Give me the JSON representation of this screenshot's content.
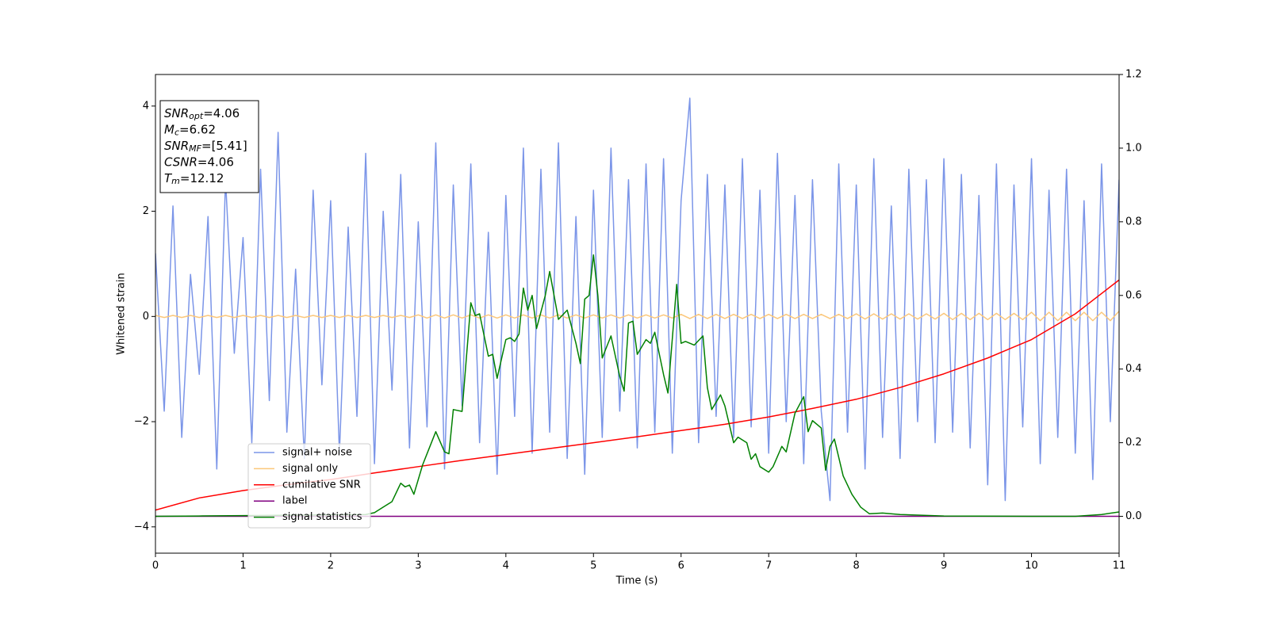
{
  "chart_data": {
    "type": "line",
    "xlabel": "Time (s)",
    "ylabel": "Whitened strain",
    "xlim": [
      0,
      11
    ],
    "ylim": [
      -4.5,
      4.6
    ],
    "y2lim": [
      -0.1,
      1.2
    ],
    "xticks": [
      0,
      1,
      2,
      3,
      4,
      5,
      6,
      7,
      8,
      9,
      10,
      11
    ],
    "yticks": [
      {
        "value": -4,
        "label": "−4"
      },
      {
        "value": -2,
        "label": "−2"
      },
      0,
      2,
      4
    ],
    "y2ticks": [
      {
        "value": 0,
        "label": "0.0"
      },
      0.2,
      0.4,
      0.6,
      0.8,
      {
        "value": 1,
        "label": "1.0"
      },
      1.2
    ],
    "legend": true,
    "x": [
      0,
      0.1,
      0.2,
      0.3,
      0.4,
      0.5,
      0.6,
      0.7,
      0.8,
      0.9,
      1,
      1.1,
      1.2,
      1.3,
      1.4,
      1.5,
      1.6,
      1.7,
      1.8,
      1.9,
      2,
      2.1,
      2.2,
      2.3,
      2.4,
      2.5,
      2.6,
      2.7,
      2.8,
      2.9,
      3,
      3.1,
      3.2,
      3.3,
      3.4,
      3.5,
      3.6,
      3.7,
      3.8,
      3.9,
      4,
      4.1,
      4.2,
      4.3,
      4.4,
      4.5,
      4.6,
      4.7,
      4.8,
      4.9,
      5,
      5.1,
      5.2,
      5.3,
      5.4,
      5.5,
      5.6,
      5.7,
      5.8,
      5.9,
      6,
      6.1,
      6.2,
      6.3,
      6.4,
      6.5,
      6.6,
      6.7,
      6.8,
      6.9,
      7,
      7.1,
      7.2,
      7.3,
      7.4,
      7.5,
      7.6,
      7.7,
      7.8,
      7.9,
      8,
      8.1,
      8.2,
      8.3,
      8.4,
      8.5,
      8.6,
      8.7,
      8.8,
      8.9,
      9,
      9.1,
      9.2,
      9.3,
      9.4,
      9.5,
      9.6,
      9.7,
      9.8,
      9.9,
      10,
      10.1,
      10.2,
      10.3,
      10.4,
      10.5,
      10.6,
      10.7,
      10.8,
      10.9,
      11
    ],
    "series": [
      {
        "name": "signal+ noise",
        "color": "#7b95e8",
        "values": [
          1.2,
          -1.8,
          2.1,
          -2.3,
          0.8,
          -1.1,
          1.9,
          -2.9,
          2.6,
          -0.7,
          1.5,
          -2.4,
          2.8,
          -1.6,
          3.5,
          -2.2,
          0.9,
          -2.7,
          2.4,
          -1.3,
          2.2,
          -2.6,
          1.7,
          -1.9,
          3.1,
          -2.8,
          2.0,
          -1.4,
          2.7,
          -2.5,
          1.8,
          -2.1,
          3.3,
          -2.9,
          2.5,
          -1.7,
          2.9,
          -2.4,
          1.6,
          -3.0,
          2.3,
          -1.9,
          3.2,
          -2.6,
          2.8,
          -2.2,
          3.3,
          -2.7,
          1.9,
          -3.0,
          2.4,
          -2.3,
          3.2,
          -1.8,
          2.6,
          -2.5,
          2.9,
          -2.2,
          3.0,
          -2.6,
          2.2,
          4.15,
          -2.4,
          2.7,
          -1.9,
          2.5,
          -2.3,
          3.0,
          -2.1,
          2.4,
          -2.6,
          3.1,
          -2.0,
          2.3,
          -2.8,
          2.6,
          -1.8,
          -3.5,
          2.9,
          -2.2,
          2.5,
          -2.9,
          3.0,
          -2.3,
          2.1,
          -2.7,
          2.8,
          -2.0,
          2.6,
          -2.4,
          3.0,
          -2.2,
          2.7,
          -2.5,
          2.3,
          -3.2,
          2.9,
          -3.5,
          2.5,
          -2.1,
          3.0,
          -2.8,
          2.4,
          -2.3,
          2.8,
          -2.6,
          2.2,
          -3.1,
          2.9,
          -2.0,
          2.6
        ]
      },
      {
        "name": "signal only",
        "color": "#fbc77a",
        "values": [
          0.02,
          -0.02,
          0.02,
          -0.02,
          0.02,
          -0.02,
          0.02,
          -0.02,
          0.02,
          -0.02,
          0.02,
          -0.02,
          0.02,
          -0.02,
          0.02,
          -0.02,
          0.02,
          -0.02,
          0.02,
          -0.02,
          0.02,
          -0.02,
          0.02,
          -0.02,
          0.02,
          -0.02,
          0.02,
          -0.02,
          0.02,
          -0.02,
          0.03,
          -0.03,
          0.03,
          -0.03,
          0.03,
          -0.03,
          0.03,
          -0.03,
          0.03,
          -0.03,
          0.03,
          -0.03,
          0.03,
          -0.03,
          0.03,
          -0.03,
          0.03,
          -0.03,
          0.03,
          -0.03,
          0.03,
          -0.03,
          0.03,
          -0.03,
          0.03,
          -0.03,
          0.03,
          -0.03,
          0.03,
          -0.03,
          0.04,
          -0.04,
          0.04,
          -0.04,
          0.04,
          -0.04,
          0.04,
          -0.04,
          0.04,
          -0.04,
          0.04,
          -0.04,
          0.04,
          -0.04,
          0.04,
          -0.04,
          0.04,
          -0.04,
          0.04,
          -0.04,
          0.05,
          -0.05,
          0.05,
          -0.05,
          0.05,
          -0.05,
          0.05,
          -0.05,
          0.05,
          -0.05,
          0.06,
          -0.06,
          0.06,
          -0.06,
          0.06,
          -0.06,
          0.06,
          -0.06,
          0.06,
          -0.06,
          0.08,
          -0.08,
          0.08,
          -0.08,
          0.08,
          -0.08,
          0.08,
          -0.08,
          0.08,
          -0.08,
          0.1
        ]
      },
      {
        "name": "cumilative SNR",
        "color": "#ff0000",
        "axis": "y2",
        "x": [
          0,
          0.5,
          1,
          1.5,
          2,
          2.5,
          3,
          3.5,
          4,
          4.5,
          5,
          5.5,
          6,
          6.5,
          7,
          7.5,
          8,
          8.5,
          9,
          9.5,
          10,
          10.5,
          11
        ],
        "values": [
          0.017,
          0.05,
          0.07,
          0.086,
          0.1,
          0.118,
          0.135,
          0.152,
          0.168,
          0.184,
          0.2,
          0.216,
          0.233,
          0.25,
          0.27,
          0.293,
          0.318,
          0.35,
          0.387,
          0.43,
          0.48,
          0.55,
          0.642
        ]
      },
      {
        "name": "label",
        "color": "#800080",
        "axis": "y2",
        "x": [
          0,
          11
        ],
        "values": [
          0,
          0
        ]
      },
      {
        "name": "signal statistics",
        "color": "#008000",
        "axis": "y2",
        "x": [
          0,
          0.5,
          1,
          1.5,
          2,
          2.4,
          2.5,
          2.6,
          2.7,
          2.8,
          2.85,
          2.9,
          2.95,
          3.05,
          3.1,
          3.2,
          3.3,
          3.35,
          3.4,
          3.5,
          3.6,
          3.65,
          3.7,
          3.8,
          3.85,
          3.9,
          4.0,
          4.05,
          4.1,
          4.15,
          4.2,
          4.25,
          4.3,
          4.35,
          4.45,
          4.5,
          4.6,
          4.7,
          4.8,
          4.85,
          4.9,
          4.95,
          5.0,
          5.05,
          5.1,
          5.2,
          5.3,
          5.35,
          5.4,
          5.45,
          5.5,
          5.6,
          5.65,
          5.7,
          5.8,
          5.85,
          5.95,
          6.0,
          6.05,
          6.15,
          6.25,
          6.3,
          6.35,
          6.45,
          6.5,
          6.6,
          6.65,
          6.75,
          6.8,
          6.85,
          6.9,
          7.0,
          7.05,
          7.15,
          7.2,
          7.3,
          7.4,
          7.45,
          7.5,
          7.6,
          7.65,
          7.7,
          7.75,
          7.85,
          7.95,
          8.05,
          8.15,
          8.3,
          8.5,
          9.0,
          10.0,
          10.5,
          10.8,
          11.0
        ],
        "values": [
          0.0,
          0.001,
          0.002,
          0.003,
          0.004,
          0.005,
          0.01,
          0.025,
          0.04,
          0.09,
          0.08,
          0.085,
          0.06,
          0.14,
          0.17,
          0.23,
          0.175,
          0.17,
          0.29,
          0.285,
          0.58,
          0.545,
          0.55,
          0.435,
          0.44,
          0.375,
          0.48,
          0.485,
          0.475,
          0.495,
          0.62,
          0.56,
          0.6,
          0.51,
          0.6,
          0.665,
          0.535,
          0.56,
          0.47,
          0.415,
          0.59,
          0.6,
          0.71,
          0.6,
          0.43,
          0.49,
          0.38,
          0.34,
          0.525,
          0.53,
          0.44,
          0.48,
          0.47,
          0.5,
          0.385,
          0.335,
          0.63,
          0.47,
          0.475,
          0.465,
          0.49,
          0.35,
          0.29,
          0.33,
          0.3,
          0.2,
          0.215,
          0.2,
          0.155,
          0.17,
          0.135,
          0.12,
          0.135,
          0.19,
          0.175,
          0.28,
          0.325,
          0.23,
          0.26,
          0.24,
          0.125,
          0.19,
          0.21,
          0.11,
          0.06,
          0.025,
          0.007,
          0.009,
          0.005,
          0.001,
          0.0,
          0.0,
          0.005,
          0.012
        ]
      }
    ],
    "annotation": [
      {
        "text": "SNR",
        "sub": "opt",
        "rest": "=4.06"
      },
      {
        "text": "M",
        "sub": "c",
        "rest": "=6.62"
      },
      {
        "text": "SNR",
        "sub": "MF",
        "rest": "=[5.41]"
      },
      {
        "text": "CSNR",
        "rest": "=4.06"
      },
      {
        "text": "T",
        "sub": "m",
        "rest": "=12.12"
      }
    ]
  }
}
